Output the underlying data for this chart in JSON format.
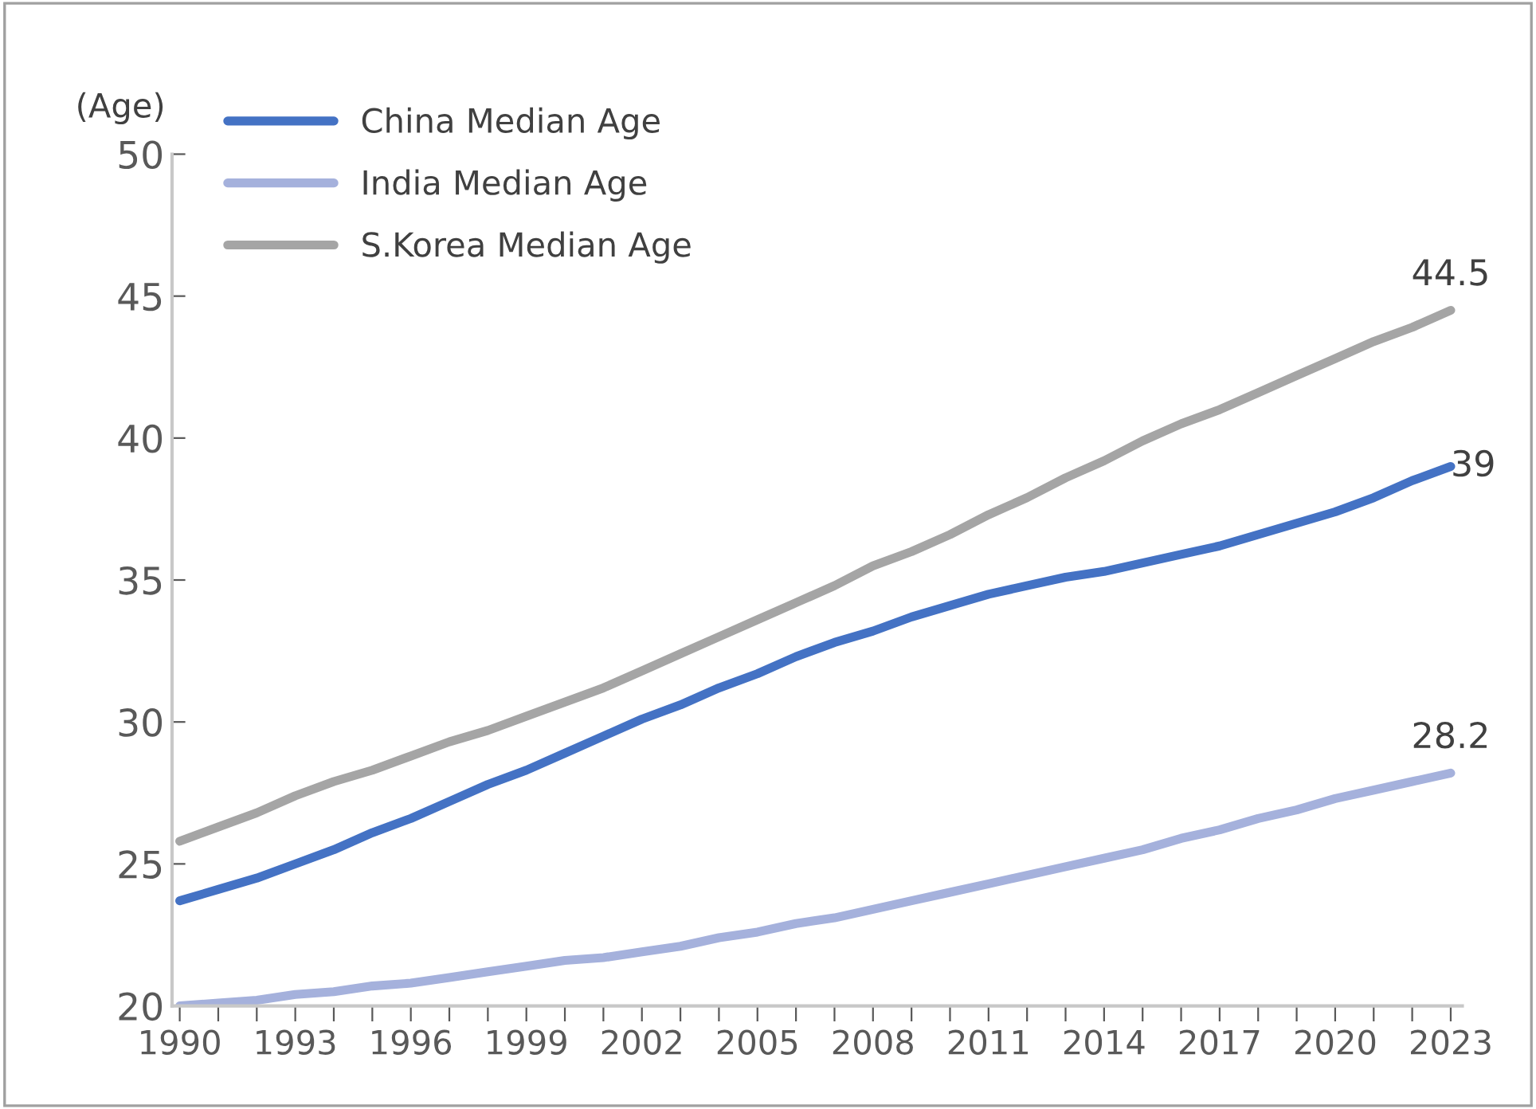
{
  "chart_data": {
    "type": "line",
    "ylabel": "(Age)",
    "x": [
      1990,
      1991,
      1992,
      1993,
      1994,
      1995,
      1996,
      1997,
      1998,
      1999,
      2000,
      2001,
      2002,
      2003,
      2004,
      2005,
      2006,
      2007,
      2008,
      2009,
      2010,
      2011,
      2012,
      2013,
      2014,
      2015,
      2016,
      2017,
      2018,
      2019,
      2020,
      2021,
      2022,
      2023
    ],
    "series": [
      {
        "name": "China Median Age",
        "color": "#4472c4",
        "values": [
          23.7,
          24.1,
          24.5,
          25.0,
          25.5,
          26.1,
          26.6,
          27.2,
          27.8,
          28.3,
          28.9,
          29.5,
          30.1,
          30.6,
          31.2,
          31.7,
          32.3,
          32.8,
          33.2,
          33.7,
          34.1,
          34.5,
          34.8,
          35.1,
          35.3,
          35.6,
          35.9,
          36.2,
          36.6,
          37.0,
          37.4,
          37.9,
          38.5,
          39.0
        ],
        "value_labels": [
          null,
          null,
          null,
          null,
          null,
          null,
          null,
          null,
          null,
          null,
          null,
          null,
          null,
          null,
          null,
          null,
          null,
          null,
          null,
          null,
          null,
          null,
          null,
          null,
          null,
          null,
          null,
          null,
          null,
          null,
          null,
          null,
          null,
          "39"
        ]
      },
      {
        "name": "India Median Age",
        "color": "#a5b1dc",
        "values": [
          20.0,
          20.1,
          20.2,
          20.4,
          20.5,
          20.7,
          20.8,
          21.0,
          21.2,
          21.4,
          21.6,
          21.7,
          21.9,
          22.1,
          22.4,
          22.6,
          22.9,
          23.1,
          23.4,
          23.7,
          24.0,
          24.3,
          24.6,
          24.9,
          25.2,
          25.5,
          25.9,
          26.2,
          26.6,
          26.9,
          27.3,
          27.6,
          27.9,
          28.2
        ],
        "value_labels": [
          null,
          null,
          null,
          null,
          null,
          null,
          null,
          null,
          null,
          null,
          null,
          null,
          null,
          null,
          null,
          null,
          null,
          null,
          null,
          null,
          null,
          null,
          null,
          null,
          null,
          null,
          null,
          null,
          null,
          null,
          null,
          null,
          null,
          "28.2"
        ]
      },
      {
        "name": "S.Korea Median Age",
        "color": "#a5a5a5",
        "values": [
          25.8,
          26.3,
          26.8,
          27.4,
          27.9,
          28.3,
          28.8,
          29.3,
          29.7,
          30.2,
          30.7,
          31.2,
          31.8,
          32.4,
          33.0,
          33.6,
          34.2,
          34.8,
          35.5,
          36.0,
          36.6,
          37.3,
          37.9,
          38.6,
          39.2,
          39.9,
          40.5,
          41.0,
          41.6,
          42.2,
          42.8,
          43.4,
          43.9,
          44.5
        ],
        "value_labels": [
          null,
          null,
          null,
          null,
          null,
          null,
          null,
          null,
          null,
          null,
          null,
          null,
          null,
          null,
          null,
          null,
          null,
          null,
          null,
          null,
          null,
          null,
          null,
          null,
          null,
          null,
          null,
          null,
          null,
          null,
          null,
          null,
          null,
          "44.5"
        ]
      }
    ],
    "xlim": [
      1989.8,
      2023.3
    ],
    "xticks": [
      1990,
      {
        "value": 1991,
        "label": null
      },
      {
        "value": 1992,
        "label": null
      },
      1993,
      {
        "value": 1994,
        "label": null
      },
      {
        "value": 1995,
        "label": null
      },
      1996,
      {
        "value": 1997,
        "label": null
      },
      {
        "value": 1998,
        "label": null
      },
      1999,
      {
        "value": 2000,
        "label": null
      },
      {
        "value": 2001,
        "label": null
      },
      2002,
      {
        "value": 2003,
        "label": null
      },
      {
        "value": 2004,
        "label": null
      },
      2005,
      {
        "value": 2006,
        "label": null
      },
      {
        "value": 2007,
        "label": null
      },
      2008,
      {
        "value": 2009,
        "label": null
      },
      {
        "value": 2010,
        "label": null
      },
      2011,
      {
        "value": 2012,
        "label": null
      },
      {
        "value": 2013,
        "label": null
      },
      2014,
      {
        "value": 2015,
        "label": null
      },
      {
        "value": 2016,
        "label": null
      },
      2017,
      {
        "value": 2018,
        "label": null
      },
      {
        "value": 2019,
        "label": null
      },
      2020,
      {
        "value": 2021,
        "label": null
      },
      {
        "value": 2022,
        "label": null
      },
      2023
    ],
    "ylim": [
      20,
      50
    ],
    "yticks": [
      20,
      25,
      30,
      35,
      40,
      45,
      50
    ],
    "grid": false,
    "legend": "top left",
    "marker": "none",
    "line_style": "solid"
  }
}
